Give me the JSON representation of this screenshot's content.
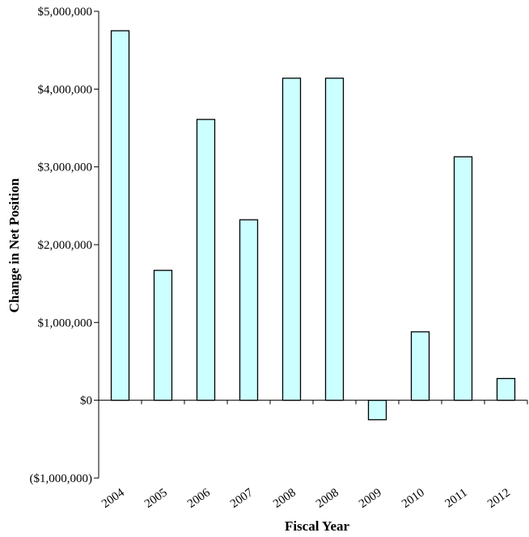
{
  "chart_data": {
    "type": "bar",
    "categories": [
      "2004",
      "2005",
      "2006",
      "2007",
      "2008",
      "2008",
      "2009",
      "2010",
      "2011",
      "2012"
    ],
    "values": [
      4750000,
      1670000,
      3610000,
      2320000,
      4140000,
      4140000,
      -250000,
      880000,
      3130000,
      280000
    ],
    "xlabel": "Fiscal Year",
    "ylabel": "Change in Net Position",
    "ylim": [
      -1000000,
      5000000
    ],
    "ytick_labels": [
      "($1,000,000)",
      "$0",
      "$1,000,000",
      "$2,000,000",
      "$3,000,000",
      "$4,000,000",
      "$5,000,000"
    ],
    "ytick_values": [
      -1000000,
      0,
      1000000,
      2000000,
      3000000,
      4000000,
      5000000
    ],
    "grid": false,
    "legend": "none",
    "colors": {
      "bar_fill": "#CCFFFF",
      "bar_stroke": "#000000",
      "axis": "#000000"
    }
  }
}
